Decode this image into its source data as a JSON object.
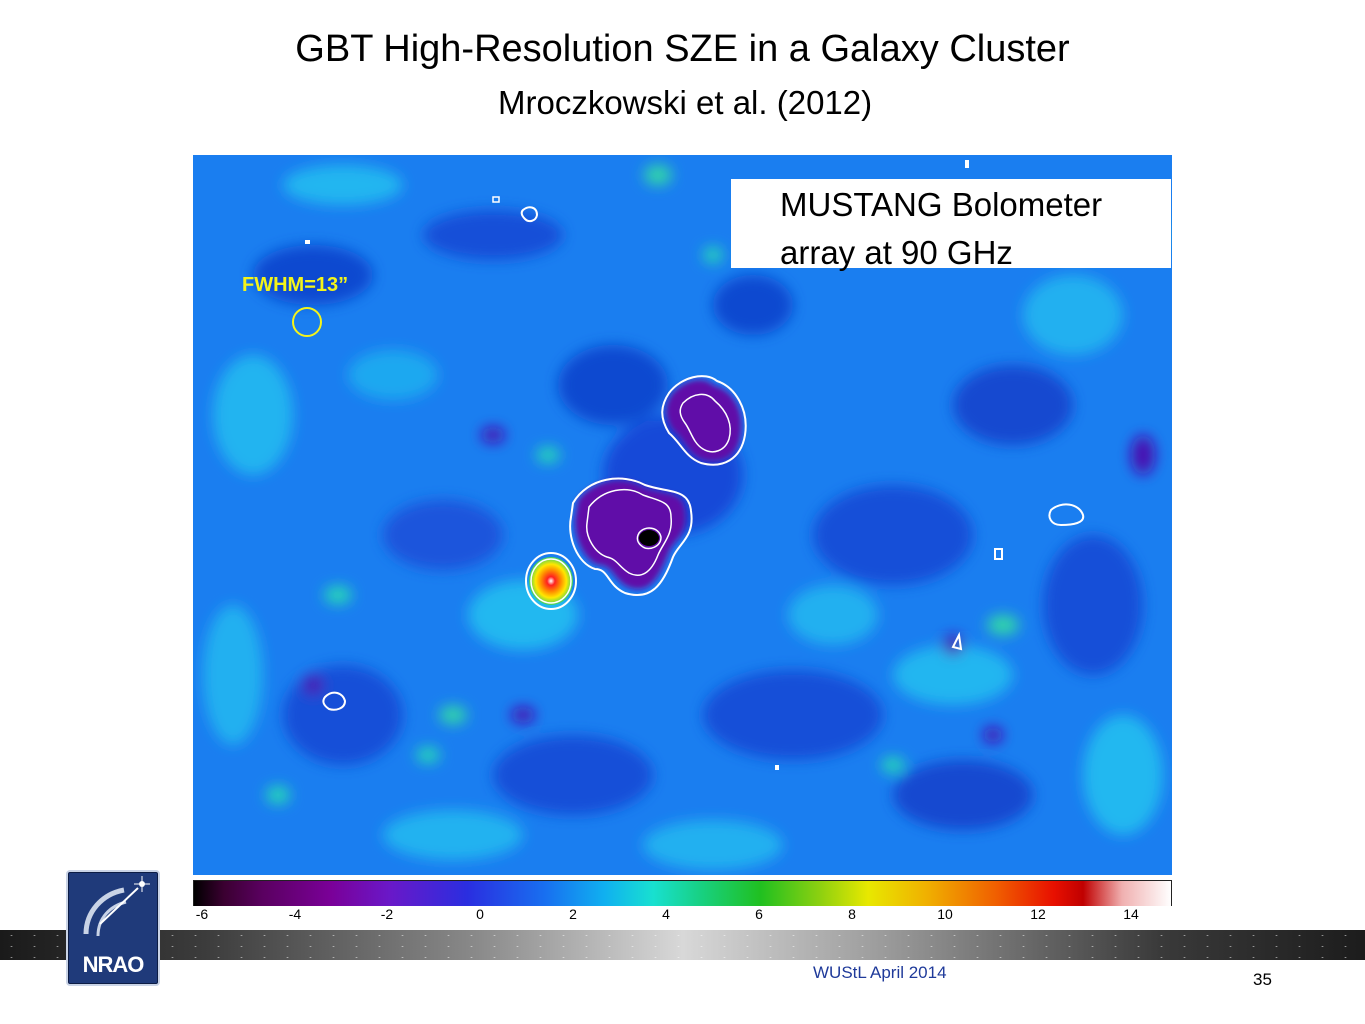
{
  "slide": {
    "title": "GBT High-Resolution SZE in a Galaxy Cluster",
    "subtitle": "Mroczkowski et al. (2012)",
    "footer": "WUStL April 2014",
    "page_number": "35"
  },
  "figure": {
    "beam_label": "FWHM=13”",
    "instrument_label": "MUSTANG Bolometer array at 90 GHz",
    "colorbar": {
      "ticks": [
        "-6",
        "-4",
        "-2",
        "0",
        "2",
        "4",
        "6",
        "8",
        "10",
        "12",
        "14"
      ]
    },
    "colors": {
      "background_blue": "#1a7ef0",
      "decrement": "#6a0fa8",
      "contour": "#ffffff",
      "beam": "#f4f41a"
    }
  },
  "logo": {
    "text": "NRAO",
    "icon": "radio-telescope-icon"
  }
}
